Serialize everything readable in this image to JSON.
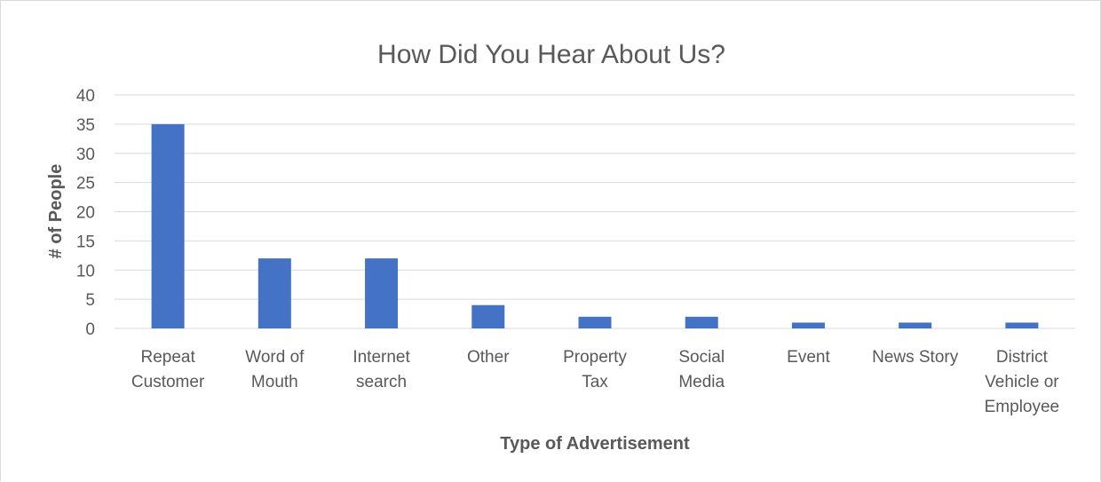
{
  "chart_data": {
    "type": "bar",
    "title": "How Did You Hear About Us?",
    "xlabel": "Type of Advertisement",
    "ylabel": "# of People",
    "categories": [
      [
        "Repeat",
        "Customer"
      ],
      [
        "Word of",
        "Mouth"
      ],
      [
        "Internet",
        "search"
      ],
      [
        "Other"
      ],
      [
        "Property",
        "Tax"
      ],
      [
        "Social",
        "Media"
      ],
      [
        "Event"
      ],
      [
        "News Story"
      ],
      [
        "District",
        "Vehicle or",
        "Employee"
      ]
    ],
    "values": [
      35,
      12,
      12,
      4,
      2,
      2,
      1,
      1,
      1
    ],
    "ylim": [
      0,
      40
    ],
    "yticks": [
      "0",
      "5",
      "10",
      "15",
      "20",
      "25",
      "30",
      "35",
      "40"
    ],
    "grid": true,
    "legend": "none",
    "colors": {
      "bar": "#4472c4",
      "grid": "#d9d9d9",
      "text": "#595959"
    }
  }
}
